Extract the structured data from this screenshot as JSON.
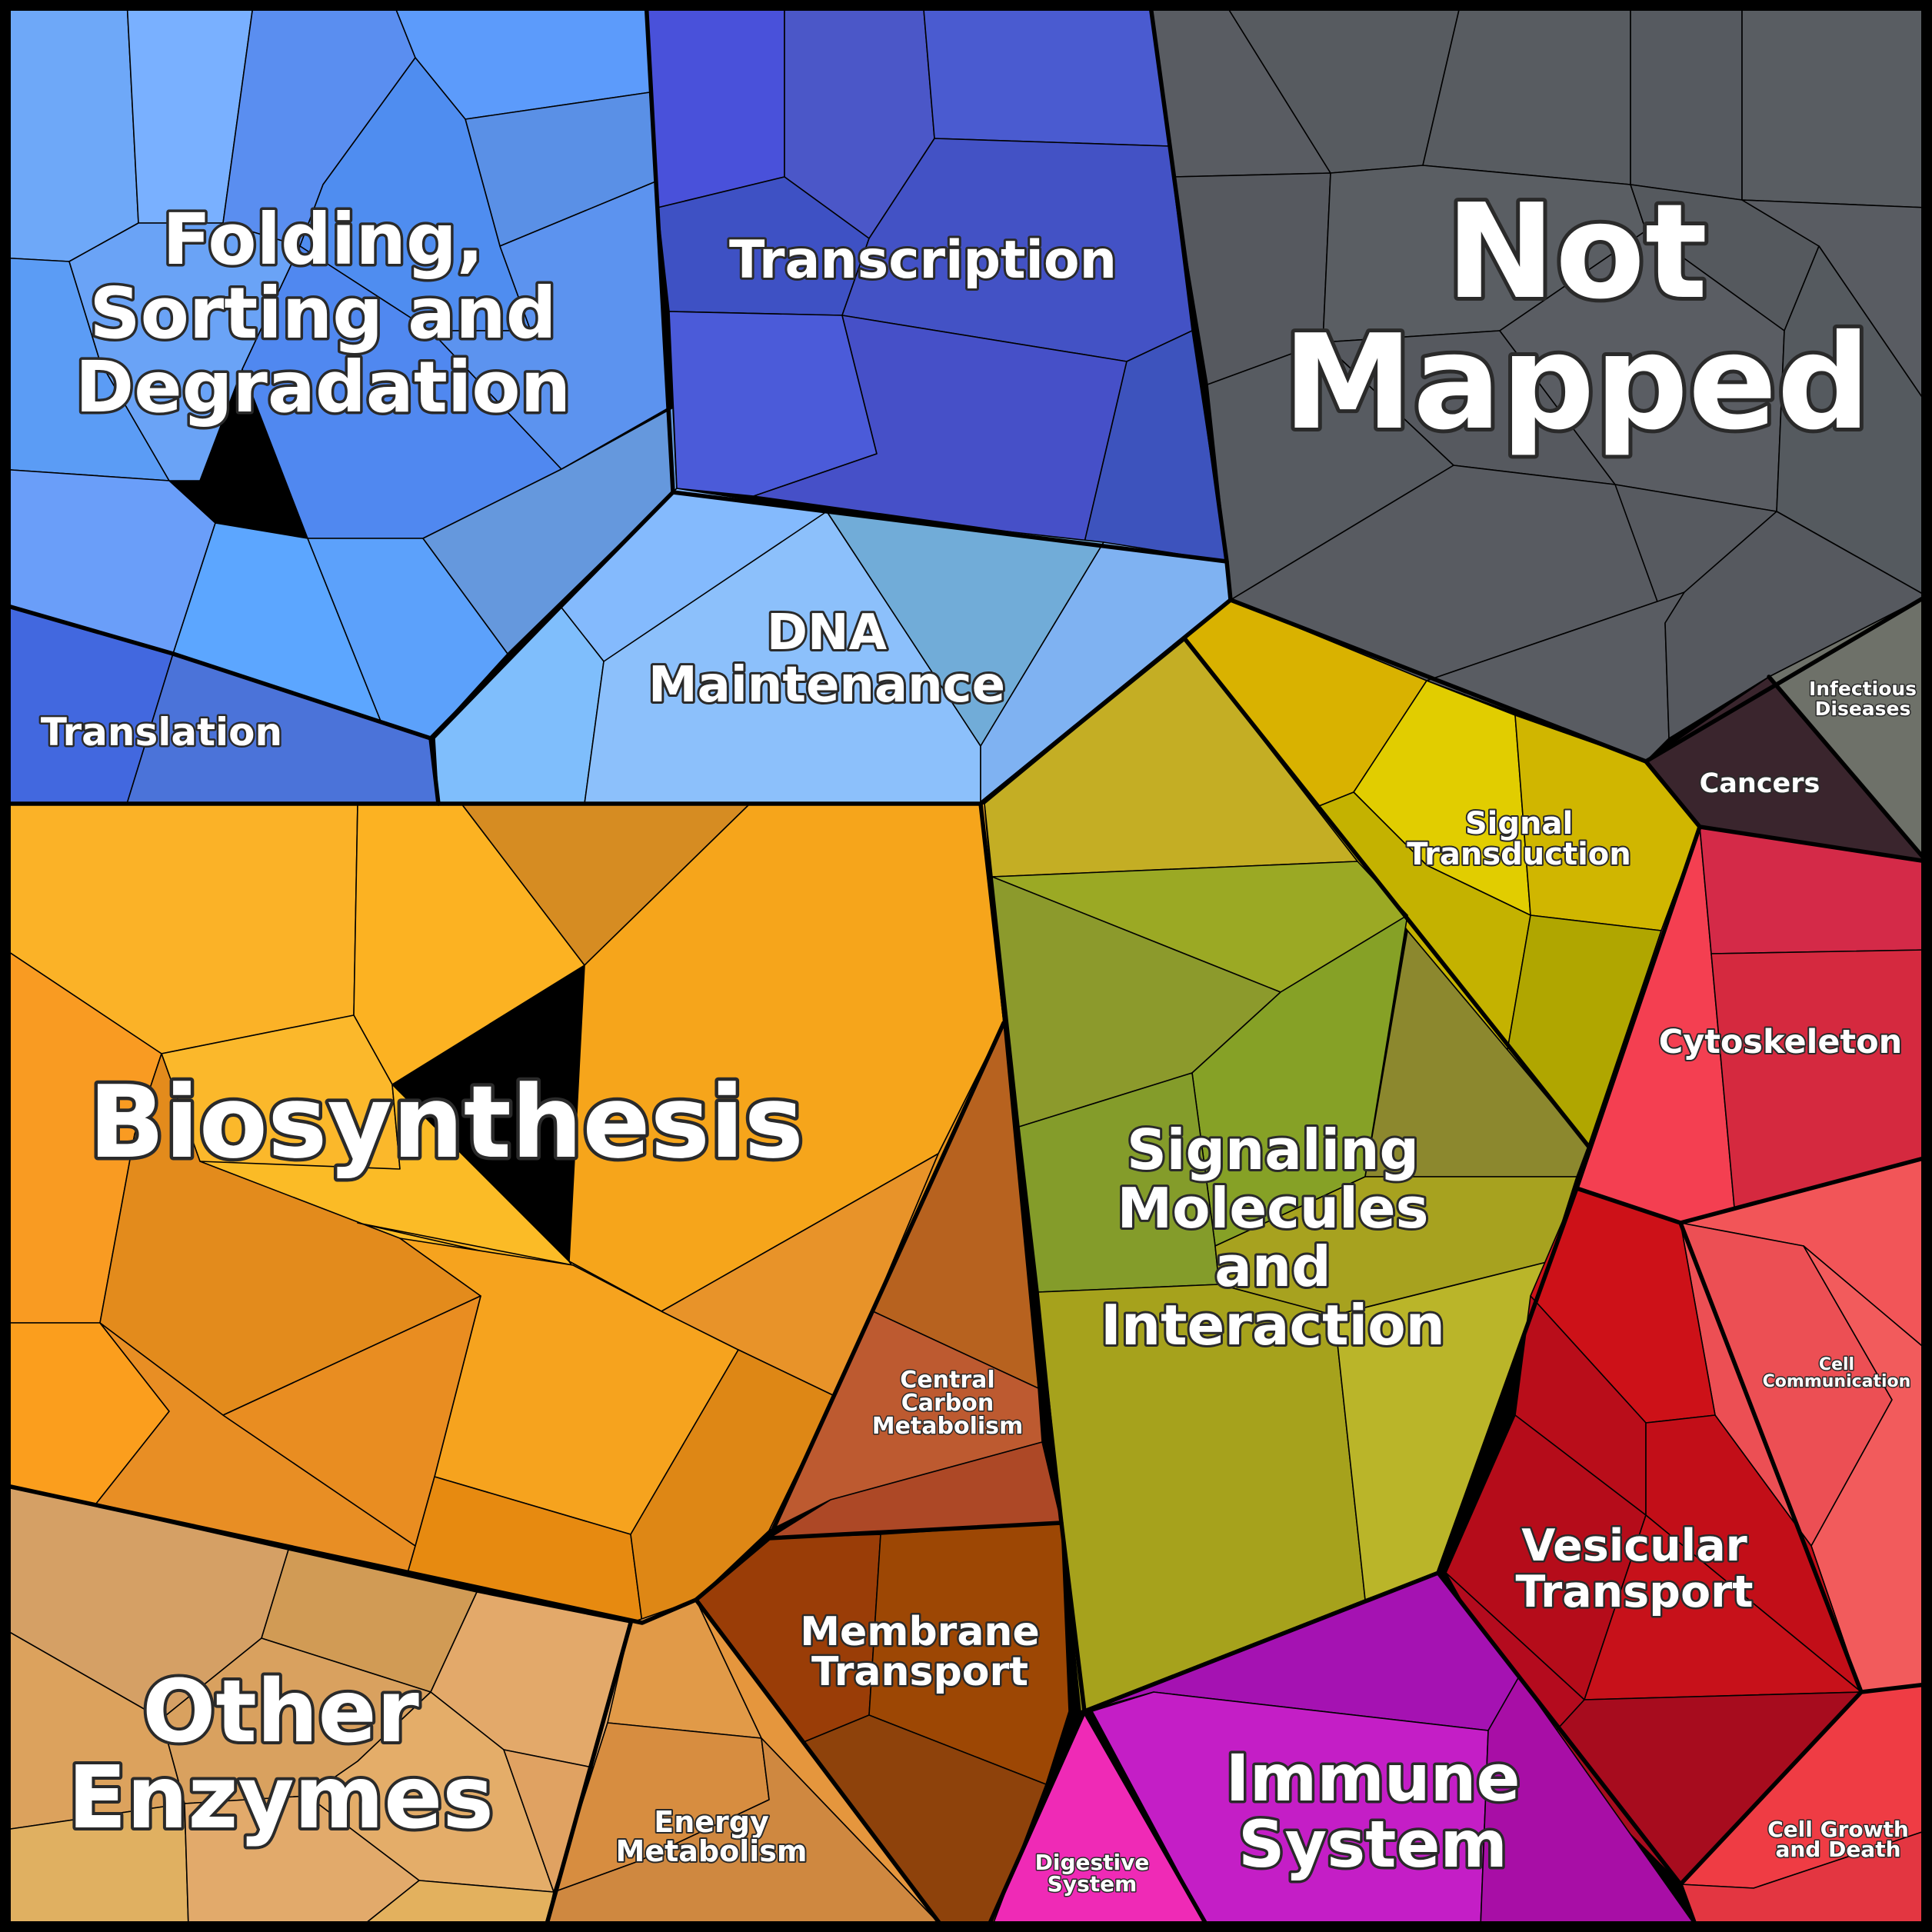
{
  "categories": {
    "folding": {
      "label": [
        "Folding,",
        "Sorting and",
        "Degradation"
      ],
      "color": "#5b98f0"
    },
    "translation": {
      "label": [
        "Translation"
      ],
      "color": "#4b72de"
    },
    "transcription": {
      "label": [
        "Transcription"
      ],
      "color": "#4652cc"
    },
    "dna_maintenance": {
      "label": [
        "DNA",
        "Maintenance"
      ],
      "color": "#86b8f8"
    },
    "not_mapped": {
      "label": [
        "Not",
        "Mapped"
      ],
      "color": "#575b60"
    },
    "infectious": {
      "label": [
        "Infectious",
        "Diseases"
      ],
      "color": "#6e7169"
    },
    "cancers": {
      "label": [
        "Cancers"
      ],
      "color": "#3a252d"
    },
    "signal_transduction": {
      "label": [
        "Signal",
        "Transduction"
      ],
      "color": "#cbb500"
    },
    "signaling_molecules": {
      "label": [
        "Signaling",
        "Molecules",
        "and",
        "Interaction"
      ],
      "color": "#a7a41d"
    },
    "cytoskeleton": {
      "label": [
        "Cytoskeleton"
      ],
      "color": "#e23550"
    },
    "cell_communication": {
      "label": [
        "Cell",
        "Communication"
      ],
      "color": "#f05456"
    },
    "vesicular_transport": {
      "label": [
        "Vesicular",
        "Transport"
      ],
      "color": "#c3101b"
    },
    "cell_growth": {
      "label": [
        "Cell Growth",
        "and Death"
      ],
      "color": "#ee3c45"
    },
    "immune": {
      "label": [
        "Immune",
        "System"
      ],
      "color": "#bc16b8"
    },
    "digestive": {
      "label": [
        "Digestive",
        "System"
      ],
      "color": "#ef2ab6"
    },
    "biosynthesis": {
      "label": [
        "Biosynthesis"
      ],
      "color": "#f5a620"
    },
    "central_carbon": {
      "label": [
        "Central",
        "Carbon",
        "Metabolism"
      ],
      "color": "#b54f28"
    },
    "membrane_transport": {
      "label": [
        "Membrane",
        "Transport"
      ],
      "color": "#944007"
    },
    "other_enzymes": {
      "label": [
        "Other",
        "Enzymes"
      ],
      "color": "#dda25e"
    },
    "energy": {
      "label": [
        "Energy",
        "Metabolism"
      ],
      "color": "#de9140"
    }
  }
}
